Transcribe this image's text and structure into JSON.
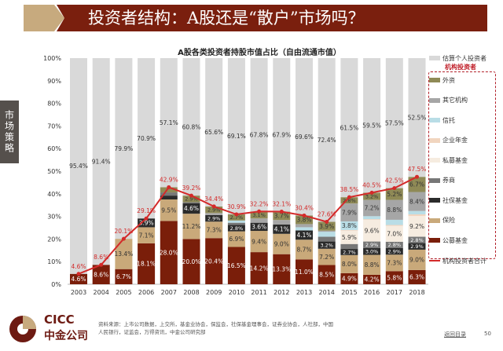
{
  "header": {
    "title": "投资者结构：A股还是“散户”市场吗？",
    "side_tab": "市场策略"
  },
  "footer": {
    "brand_en": "CICC",
    "brand_cn": "中金公司",
    "source": "资料来源：上市公司数据，上交所，基金业协会，保监会，社保基金理事会，证券业协会，人社部，中国人民银行，证监会，万得资讯，中金公司研究部",
    "back_link": "返回目录",
    "page": "50"
  },
  "chart_data": {
    "type": "bar",
    "stacked": true,
    "title": "A股各类投资者持股市值占比（自由流通市值）",
    "ylim": [
      0,
      100
    ],
    "yticks": [
      "0%",
      "10%",
      "20%",
      "30%",
      "40%",
      "50%",
      "60%",
      "70%",
      "80%",
      "90%",
      "100%"
    ],
    "categories": [
      "2003",
      "2004",
      "2005",
      "2006",
      "2007",
      "2008",
      "2009",
      "2010",
      "2011",
      "2012",
      "2013",
      "2014",
      "2015",
      "2016",
      "2017",
      "2018"
    ],
    "legend_institution_group": "机构投资者",
    "series": [
      {
        "name": "公募基金",
        "color": "#7a1e0a",
        "values": [
          4.6,
          8.6,
          6.7,
          18.1,
          28.0,
          20.0,
          20.4,
          16.5,
          14.2,
          13.3,
          11.0,
          8.5,
          4.9,
          4.2,
          5.8,
          6.3
        ]
      },
      {
        "name": "保险",
        "color": "#c9a97a",
        "values": [
          0,
          0,
          13.4,
          7.1,
          9.5,
          11.2,
          7.3,
          6.9,
          9.4,
          9.0,
          8.7,
          7.2,
          8.0,
          8.8,
          7.3,
          9.0
        ]
      },
      {
        "name": "社保基金",
        "color": "#2b2b2b",
        "values": [
          0,
          0,
          0,
          3.9,
          1.7,
          4.6,
          2.9,
          2.8,
          3.6,
          4.1,
          4.1,
          3.2,
          2.7,
          3.0,
          2.9,
          2.9
        ]
      },
      {
        "name": "券商",
        "color": "#777777",
        "values": [
          0,
          0,
          0,
          0,
          1.4,
          0.5,
          0,
          1.0,
          0,
          0,
          0,
          2.1,
          2.2,
          2.9,
          2.8,
          2.8
        ]
      },
      {
        "name": "私募基金",
        "color": "#f6ece0",
        "values": [
          0,
          0,
          0,
          0,
          0,
          0,
          0,
          0,
          0,
          0,
          0,
          0,
          5.9,
          9.6,
          7.0,
          9.2
        ]
      },
      {
        "name": "企业年金",
        "color": "#f1d5bf",
        "values": [
          0,
          0,
          0,
          0,
          0,
          0,
          0,
          0,
          0,
          0,
          0,
          0,
          0.3,
          0.3,
          0.4,
          0.7
        ]
      },
      {
        "name": "信托",
        "color": "#b9dde6",
        "values": [
          0,
          0,
          0,
          0,
          0,
          0,
          0,
          1.0,
          0,
          0,
          1.4,
          2.2,
          3.8,
          1.3,
          2.3,
          1.5
        ]
      },
      {
        "name": "其它机构",
        "color": "#a6a6a6",
        "values": [
          0,
          0,
          0,
          0,
          0,
          0,
          0.9,
          0,
          1.9,
          2.0,
          1.4,
          0.5,
          7.9,
          7.2,
          8.8,
          8.4
        ]
      },
      {
        "name": "外资",
        "color": "#8f8a56",
        "values": [
          0,
          0,
          0,
          0,
          2.3,
          2.9,
          2.9,
          2.7,
          3.1,
          3.7,
          3.8,
          3.9,
          2.8,
          3.2,
          5.2,
          6.7
        ]
      },
      {
        "name": "估算个人投资者",
        "color": "#d9d9d9",
        "values": [
          95.4,
          91.4,
          79.9,
          70.9,
          57.1,
          60.8,
          65.6,
          69.1,
          67.8,
          67.9,
          69.6,
          72.4,
          61.5,
          59.5,
          57.5,
          52.5
        ]
      }
    ],
    "line": {
      "name": "机构投资者合计",
      "color": "#d42a2a",
      "values": [
        4.6,
        8.6,
        20.1,
        29.1,
        42.9,
        39.2,
        34.4,
        30.9,
        32.2,
        32.1,
        30.4,
        27.6,
        38.5,
        40.5,
        42.5,
        47.5
      ]
    }
  }
}
